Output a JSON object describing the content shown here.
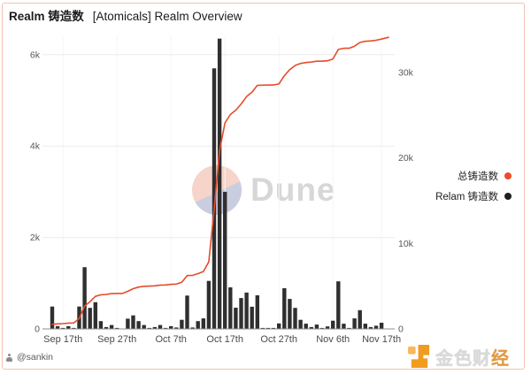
{
  "header": {
    "title_bold": "Realm 铸造数",
    "title_rest": "[Atomicals] Realm Overview"
  },
  "watermark": {
    "text": "Dune"
  },
  "legend": [
    {
      "label": "总铸造数",
      "color": "#ee4c2d"
    },
    {
      "label": "Relam 铸造数",
      "color": "#1f1f1f"
    }
  ],
  "footer": {
    "author": "@sankin",
    "brand_main": "金色财",
    "brand_last": "经"
  },
  "chart_data": {
    "type": "bar",
    "subtype": "dual-axis bar + cumulative line, daily time series",
    "title": "Realm 铸造数 [Atomicals] Realm Overview",
    "x_tick_labels": [
      "Sep 17th",
      "Sep 27th",
      "Oct 7th",
      "Oct 17th",
      "Oct 27th",
      "Nov 6th",
      "Nov 17th"
    ],
    "x_tick_day_index": [
      2,
      12,
      22,
      32,
      42,
      52,
      61
    ],
    "left_axis": {
      "series": "Relam 铸造数",
      "ticks": [
        {
          "label": "0",
          "value": 0
        },
        {
          "label": "2k",
          "value": 2000
        },
        {
          "label": "4k",
          "value": 4000
        },
        {
          "label": "6k",
          "value": 6000
        }
      ]
    },
    "right_axis": {
      "series": "总铸造数",
      "ticks": [
        {
          "label": "0",
          "value": 0
        },
        {
          "label": "10k",
          "value": 10000
        },
        {
          "label": "20k",
          "value": 20000
        },
        {
          "label": "30k",
          "value": 30000
        }
      ]
    },
    "bars": {
      "name": "Relam 铸造数",
      "color": "#2f2f2f",
      "values": [
        490,
        60,
        20,
        60,
        10,
        490,
        1350,
        460,
        585,
        170,
        40,
        85,
        20,
        0,
        225,
        295,
        170,
        85,
        10,
        40,
        85,
        10,
        60,
        30,
        200,
        730,
        30,
        170,
        230,
        1050,
        5700,
        6350,
        3000,
        910,
        465,
        675,
        795,
        485,
        735,
        20,
        15,
        5,
        120,
        890,
        655,
        460,
        200,
        115,
        40,
        95,
        5,
        55,
        180,
        1040,
        115,
        5,
        230,
        410,
        115,
        40,
        70,
        135
      ]
    },
    "line": {
      "name": "总铸造数",
      "color": "#e64b2c",
      "values": [
        530,
        590,
        620,
        680,
        690,
        1220,
        2680,
        3180,
        3810,
        3990,
        4030,
        4130,
        4150,
        4150,
        4390,
        4710,
        4890,
        4980,
        5000,
        5040,
        5130,
        5140,
        5210,
        5240,
        5450,
        6240,
        6270,
        6460,
        6710,
        7840,
        14000,
        20850,
        24090,
        25080,
        25580,
        26310,
        27170,
        27690,
        28490,
        28510,
        28520,
        28530,
        28660,
        29620,
        30330,
        30820,
        31040,
        31160,
        31210,
        31310,
        31310,
        31370,
        31570,
        32690,
        32820,
        32820,
        33070,
        33510,
        33640,
        33680,
        33760,
        33900
      ]
    }
  }
}
